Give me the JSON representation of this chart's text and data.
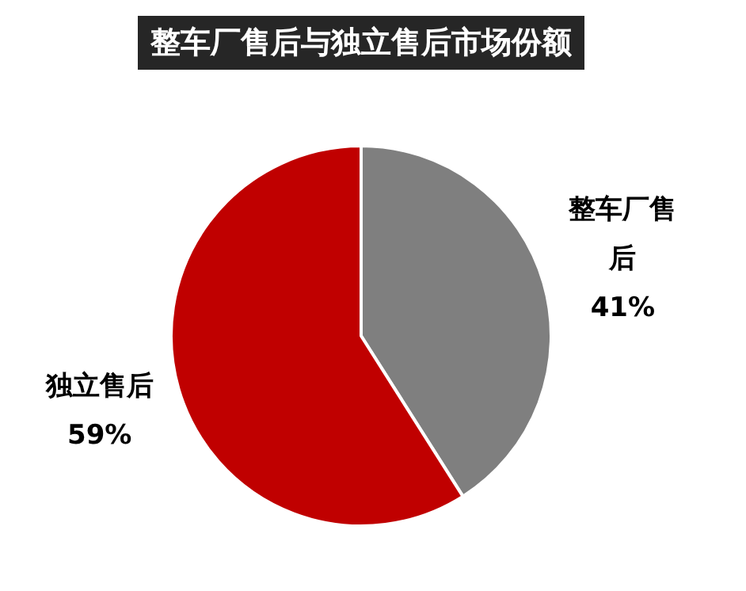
{
  "chart_data": {
    "type": "pie",
    "title": "整车厂售后与独立售后市场份额",
    "categories": [
      "整车厂售后",
      "独立售后"
    ],
    "values": [
      41,
      59
    ],
    "colors": [
      "#7f7f7f",
      "#c00000"
    ],
    "value_labels": [
      "41%",
      "59%"
    ],
    "legend": false
  }
}
